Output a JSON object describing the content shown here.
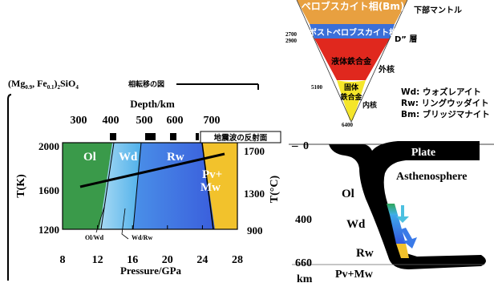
{
  "phase_diagram": {
    "title_formula": "(Mg",
    "title_sub1": "0.9",
    "title_mid": ", Fe",
    "title_sub2": "0.1",
    "title_end": ")",
    "title_sub3": "2",
    "title_tail": "SiO",
    "title_sub4": "4",
    "title_jp": "相転移の図",
    "depth_label": "Depth/km",
    "depth_ticks": [
      "300",
      "400",
      "500",
      "600",
      "700"
    ],
    "pressure_label": "Pressure/GPa",
    "pressure_ticks": [
      "8",
      "12",
      "16",
      "20",
      "24",
      "28"
    ],
    "tk_label": "T(K)",
    "tk_ticks": [
      "2000",
      "1600",
      "1200"
    ],
    "tc_label": "T(°C)",
    "tc_ticks": [
      "1700",
      "1300",
      "900"
    ],
    "seismic_label": "地震波の反射面",
    "phases": {
      "ol": "Ol",
      "wd": "Wd",
      "rw": "Rw",
      "pv": "Pv+",
      "mw": "Mw"
    },
    "boundary_labels": {
      "ol_wd": "Ol/Wd",
      "wd_rw": "Wd/Rw"
    },
    "colors": {
      "olivine": "#3a9a4a",
      "wadsleyite_light": "#a7d7f2",
      "wadsleyite": "#5fb8ea",
      "ringwoodite": "#3f6fe0",
      "perovskite": "#f2c22c"
    }
  },
  "earth_section": {
    "layers": {
      "perovskite": "ペロブスカイト相(Bm)",
      "lower_mantle": "下部マントル",
      "post_perovskite": "ポストペロブスカイト相",
      "d_layer": "D” 層",
      "liquid_core": "液体鉄合金",
      "outer_core": "外核",
      "solid_core_1": "固体",
      "solid_core_2": "鉄合金",
      "inner_core": "内核"
    },
    "depths": [
      "2700",
      "2900",
      "5100",
      "6400"
    ],
    "legend": [
      "Wd: ウォズレアイト",
      "Rw: リングウッダイト",
      "Bm: ブリッジマナイト"
    ],
    "colors": {
      "perovskite": "#e8a040",
      "post_perovskite": "#3b6fd8",
      "liquid": "#e0281e",
      "solid": "#f5e62a"
    }
  },
  "slab": {
    "depth_ticks": [
      "0",
      "400",
      "660"
    ],
    "unit": "km",
    "labels": {
      "plate": "Plate",
      "asthenosphere": "Asthenosphere",
      "ol": "Ol",
      "wd": "Wd",
      "rw": "Rw",
      "pv": "Pv+Mw"
    }
  }
}
